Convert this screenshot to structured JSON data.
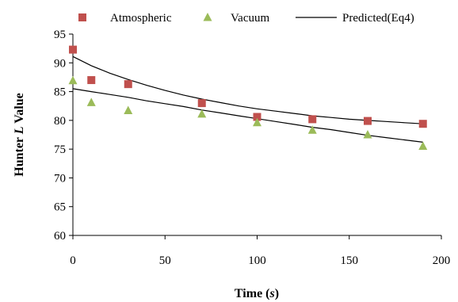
{
  "chart_data": {
    "type": "scatter",
    "xlabel": {
      "prefix": "Time (",
      "italic": "s",
      "suffix": ")"
    },
    "ylabel": {
      "prefix": "Hunter ",
      "italic": "L",
      "suffix": " Value"
    },
    "xlim": [
      0,
      200
    ],
    "ylim": [
      60,
      95
    ],
    "xticks": [
      0,
      50,
      100,
      150,
      200
    ],
    "yticks": [
      60,
      65,
      70,
      75,
      80,
      85,
      90,
      95
    ],
    "grid": false,
    "legend_position": "top",
    "series": [
      {
        "name": "Atmospheric",
        "kind": "marker",
        "marker": "square",
        "color": "#c0504d",
        "x": [
          0,
          10,
          30,
          70,
          100,
          130,
          160,
          190
        ],
        "y": [
          92.3,
          87.0,
          86.3,
          83.0,
          80.6,
          80.2,
          79.9,
          79.4
        ]
      },
      {
        "name": "Vacuum",
        "kind": "marker",
        "marker": "triangle",
        "color": "#9bbb59",
        "x": [
          0,
          10,
          30,
          70,
          100,
          130,
          160,
          190
        ],
        "y": [
          86.9,
          83.1,
          81.7,
          81.1,
          79.6,
          78.3,
          77.5,
          75.5
        ]
      },
      {
        "name": "Predicted(Eq4)",
        "kind": "line",
        "color": "#000000",
        "curves": [
          {
            "x": [
              0,
              10,
              20,
              30,
              40,
              50,
              60,
              70,
              80,
              90,
              100,
              110,
              120,
              130,
              140,
              150,
              160,
              170,
              180,
              190
            ],
            "y": [
              91.1,
              89.5,
              88.2,
              87.1,
              86.1,
              85.2,
              84.4,
              83.7,
              83.1,
              82.5,
              82.0,
              81.6,
              81.2,
              80.8,
              80.5,
              80.2,
              80.0,
              79.8,
              79.6,
              79.4
            ]
          },
          {
            "x": [
              0,
              10,
              20,
              30,
              40,
              50,
              60,
              70,
              80,
              90,
              100,
              110,
              120,
              130,
              140,
              150,
              160,
              170,
              180,
              190
            ],
            "y": [
              85.5,
              85.0,
              84.5,
              84.0,
              83.4,
              82.9,
              82.4,
              81.8,
              81.3,
              80.8,
              80.3,
              79.8,
              79.3,
              78.8,
              78.4,
              77.9,
              77.4,
              77.0,
              76.6,
              76.2
            ]
          }
        ]
      }
    ]
  }
}
